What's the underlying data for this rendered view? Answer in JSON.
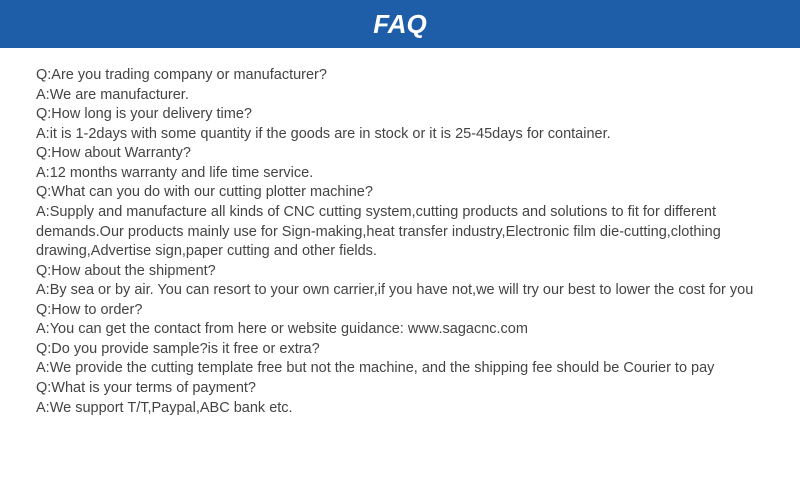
{
  "header": {
    "title": "FAQ",
    "bg_color": "#1e5da8",
    "text_color": "#ffffff",
    "font_size": 26,
    "height": 48
  },
  "content": {
    "text_color": "#444444",
    "font_size": 14.5,
    "lines": [
      "Q:Are you trading company or manufacturer?",
      "A:We are manufacturer.",
      "Q:How long is your delivery time?",
      "A:it is 1-2days with some quantity if the goods are in stock or it is 25-45days for container.",
      "Q:How about Warranty?",
      "A:12 months warranty and life time service.",
      "Q:What can you do with our cutting plotter machine?",
      "A:Supply and manufacture all kinds of CNC cutting system,cutting products and solutions to fit for different demands.Our products mainly use for Sign-making,heat transfer industry,Electronic film die-cutting,clothing drawing,Advertise sign,paper cutting and other fields.",
      "Q:How about the shipment?",
      "A:By sea or by air. You can resort to your own carrier,if you have not,we will try our best to lower the cost for you",
      "Q:How to order?",
      "A:You can get the contact from here or website guidance: www.sagacnc.com",
      "Q:Do you provide sample?is it free or extra?",
      "A:We provide the cutting template free but not the machine, and the shipping fee should be Courier to pay",
      "Q:What is your terms of payment?",
      "A:We support T/T,Paypal,ABC bank etc."
    ]
  }
}
